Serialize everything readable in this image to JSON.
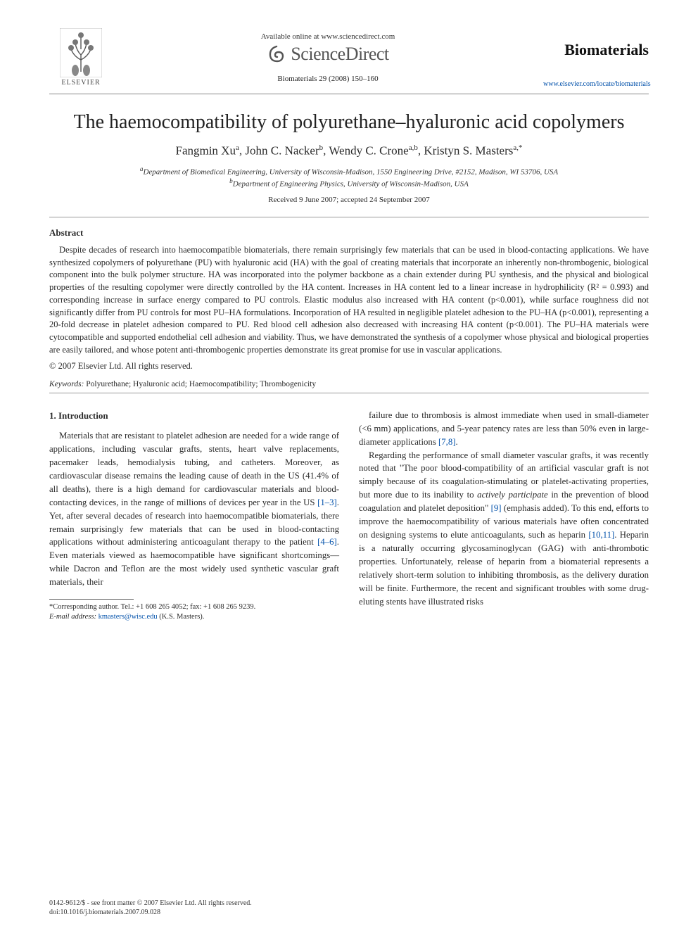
{
  "header": {
    "elsevier_label": "ELSEVIER",
    "available_line": "Available online at www.sciencedirect.com",
    "sciencedirect": "ScienceDirect",
    "journal_ref": "Biomaterials 29 (2008) 150–160",
    "journal_name": "Biomaterials",
    "journal_url": "www.elsevier.com/locate/biomaterials"
  },
  "title": "The haemocompatibility of polyurethane–hyaluronic acid copolymers",
  "authors_html": "Fangmin Xu<sup>a</sup>, John C. Nacker<sup>b</sup>, Wendy C. Crone<sup>a,b</sup>, Kristyn S. Masters<sup>a,*</sup>",
  "affiliations": {
    "a": "Department of Biomedical Engineering, University of Wisconsin-Madison, 1550 Engineering Drive, #2152, Madison, WI 53706, USA",
    "b": "Department of Engineering Physics, University of Wisconsin-Madison, USA"
  },
  "dates": "Received 9 June 2007; accepted 24 September 2007",
  "abstract": {
    "heading": "Abstract",
    "body": "Despite decades of research into haemocompatible biomaterials, there remain surprisingly few materials that can be used in blood-contacting applications. We have synthesized copolymers of polyurethane (PU) with hyaluronic acid (HA) with the goal of creating materials that incorporate an inherently non-thrombogenic, biological component into the bulk polymer structure. HA was incorporated into the polymer backbone as a chain extender during PU synthesis, and the physical and biological properties of the resulting copolymer were directly controlled by the HA content. Increases in HA content led to a linear increase in hydrophilicity (R² = 0.993) and corresponding increase in surface energy compared to PU controls. Elastic modulus also increased with HA content (p<0.001), while surface roughness did not significantly differ from PU controls for most PU–HA formulations. Incorporation of HA resulted in negligible platelet adhesion to the PU–HA (p<0.001), representing a 20-fold decrease in platelet adhesion compared to PU. Red blood cell adhesion also decreased with increasing HA content (p<0.001). The PU–HA materials were cytocompatible and supported endothelial cell adhesion and viability. Thus, we have demonstrated the synthesis of a copolymer whose physical and biological properties are easily tailored, and whose potent anti-thrombogenic properties demonstrate its great promise for use in vascular applications.",
    "copyright": "© 2007 Elsevier Ltd. All rights reserved."
  },
  "keywords": {
    "label": "Keywords:",
    "text": "Polyurethane; Hyaluronic acid; Haemocompatibility; Thrombogenicity"
  },
  "section1": {
    "heading": "1. Introduction",
    "col_left": "Materials that are resistant to platelet adhesion are needed for a wide range of applications, including vascular grafts, stents, heart valve replacements, pacemaker leads, hemodialysis tubing, and catheters. Moreover, as cardiovascular disease remains the leading cause of death in the US (41.4% of all deaths), there is a high demand for cardiovascular materials and blood-contacting devices, in the range of millions of devices per year in the US [1–3]. Yet, after several decades of research into haemocompatible biomaterials, there remain surprisingly few materials that can be used in blood-contacting applications without administering anticoagulant therapy to the patient [4–6]. Even materials viewed as haemocompatible have significant shortcomings—while Dacron and Teflon are the most widely used synthetic vascular graft materials, their",
    "col_right_p1": "failure due to thrombosis is almost immediate when used in small-diameter (<6 mm) applications, and 5-year patency rates are less than 50% even in large-diameter applications [7,8].",
    "col_right_p2": "Regarding the performance of small diameter vascular grafts, it was recently noted that \"The poor blood-compatibility of an artificial vascular graft is not simply because of its coagulation-stimulating or platelet-activating properties, but more due to its inability to actively participate in the prevention of blood coagulation and platelet deposition\" [9] (emphasis added). To this end, efforts to improve the haemocompatibility of various materials have often concentrated on designing systems to elute anticoagulants, such as heparin [10,11]. Heparin is a naturally occurring glycosaminoglycan (GAG) with anti-thrombotic properties. Unfortunately, release of heparin from a biomaterial represents a relatively short-term solution to inhibiting thrombosis, as the delivery duration will be finite. Furthermore, the recent and significant troubles with some drug-eluting stents have illustrated risks"
  },
  "footnote": {
    "corr": "*Corresponding author. Tel.: +1 608 265 4052; fax: +1 608 265 9239.",
    "email_label": "E-mail address:",
    "email": "kmasters@wisc.edu",
    "email_name": "(K.S. Masters)."
  },
  "bottom": {
    "line1": "0142-9612/$ - see front matter © 2007 Elsevier Ltd. All rights reserved.",
    "line2": "doi:10.1016/j.biomaterials.2007.09.028"
  },
  "colors": {
    "text": "#2a2a2a",
    "link": "#0050aa",
    "rule": "#888888",
    "elsevier_orange": "#e67817"
  }
}
